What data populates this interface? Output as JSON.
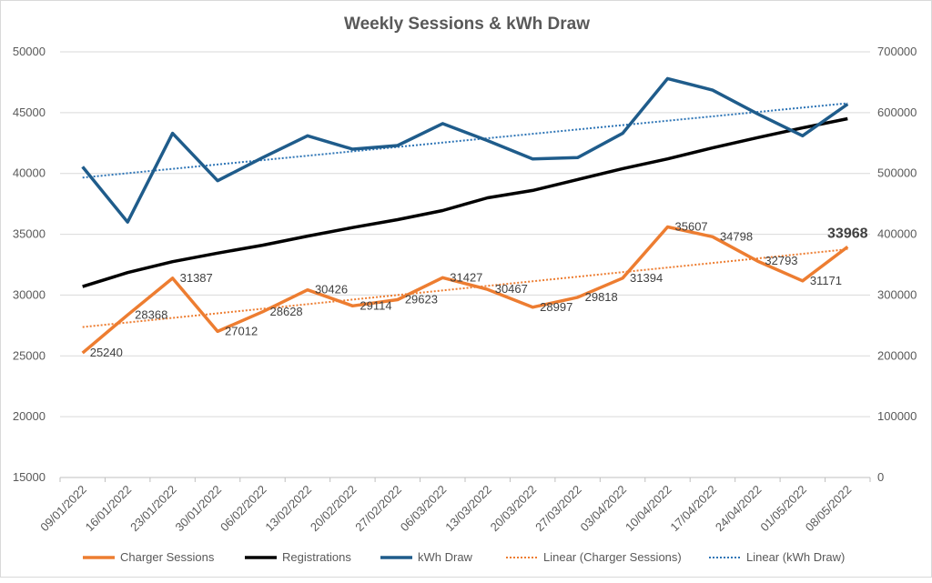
{
  "chart_data": {
    "type": "line",
    "title": "Weekly Sessions & kWh Draw",
    "categories": [
      "09/01/2022",
      "16/01/2022",
      "23/01/2022",
      "30/01/2022",
      "06/02/2022",
      "13/02/2022",
      "20/02/2022",
      "27/02/2022",
      "06/03/2022",
      "13/03/2022",
      "20/03/2022",
      "27/03/2022",
      "03/04/2022",
      "10/04/2022",
      "17/04/2022",
      "24/04/2022",
      "01/05/2022",
      "08/05/2022"
    ],
    "y_left": {
      "min": 15000,
      "max": 50000,
      "step": 5000,
      "ticks": [
        "15000",
        "20000",
        "25000",
        "30000",
        "35000",
        "40000",
        "45000",
        "50000"
      ]
    },
    "y_right": {
      "min": 0,
      "max": 700000,
      "step": 100000,
      "ticks": [
        "0",
        "100000",
        "200000",
        "300000",
        "400000",
        "500000",
        "600000",
        "700000"
      ]
    },
    "series": [
      {
        "name": "Charger Sessions",
        "axis": "left",
        "color": "#ED7D31",
        "values": [
          25240,
          28368,
          31387,
          27012,
          28628,
          30426,
          29114,
          29623,
          31427,
          30467,
          28997,
          29818,
          31394,
          35607,
          34798,
          32793,
          31171,
          33968
        ],
        "labels": [
          "25240",
          "28368",
          "31387",
          "27012",
          "28628",
          "30426",
          "29114",
          "29623",
          "31427",
          "30467",
          "28997",
          "29818",
          "31394",
          "35607",
          "34798",
          "32793",
          "31171",
          "33968"
        ]
      },
      {
        "name": "Registrations",
        "axis": "left",
        "color": "#000000",
        "values": [
          30700,
          31850,
          32750,
          33450,
          34100,
          34850,
          35550,
          36200,
          36950,
          38000,
          38600,
          39500,
          40400,
          41200,
          42100,
          42950,
          43750,
          44500
        ]
      },
      {
        "name": "kWh Draw",
        "axis": "right",
        "color": "#1F5C8B",
        "values": [
          511000,
          420000,
          566000,
          488000,
          526000,
          562000,
          540000,
          546000,
          582000,
          554000,
          524000,
          526000,
          566000,
          656000,
          637000,
          598000,
          562000,
          614000
        ]
      }
    ],
    "trendlines": [
      {
        "name": "Linear (Charger Sessions)",
        "of": "Charger Sessions",
        "color": "#ED7D31"
      },
      {
        "name": "Linear (kWh Draw)",
        "of": "kWh Draw",
        "color": "#2E75B6"
      }
    ],
    "legend_position": "bottom",
    "grid": true
  }
}
